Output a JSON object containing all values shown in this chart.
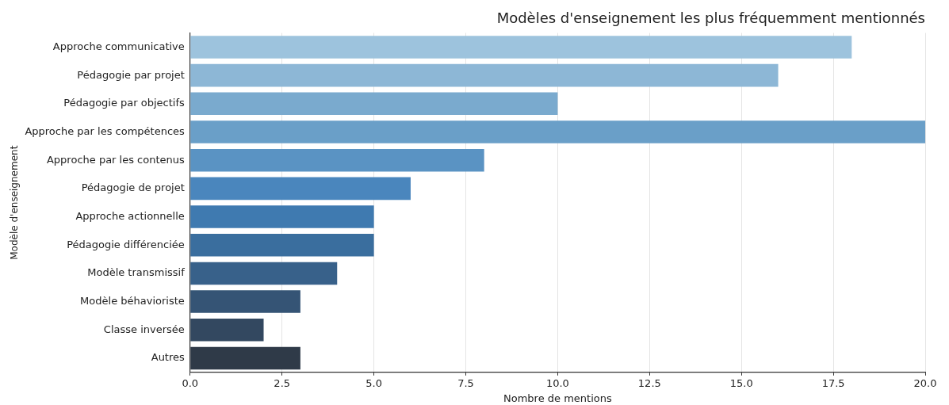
{
  "chart_data": {
    "type": "bar",
    "orientation": "horizontal",
    "title": "Modèles d'enseignement les plus fréquemment mentionnés",
    "xlabel": "Nombre de mentions",
    "ylabel": "Modèle d'enseignement",
    "categories": [
      "Approche communicative",
      "Pédagogie par projet",
      "Pédagogie par objectifs",
      "Approche par les compétences",
      "Approche par les contenus",
      "Pédagogie de projet",
      "Approche actionnelle",
      "Pédagogie différenciée",
      "Modèle transmissif",
      "Modèle béhavioriste",
      "Classe inversée",
      "Autres"
    ],
    "values": [
      18,
      16,
      10,
      20,
      8,
      6,
      5,
      5,
      4,
      3,
      2,
      3
    ],
    "colors": [
      "#9dc3dd",
      "#8db7d6",
      "#7aaace",
      "#6a9fc8",
      "#5a93c3",
      "#4a86bd",
      "#3f7ab0",
      "#3a6e9e",
      "#38618a",
      "#355475",
      "#334860",
      "#2f3a48"
    ],
    "xlim": [
      0,
      20
    ],
    "xticks": [
      {
        "value": 0,
        "label": "0.0"
      },
      {
        "value": 2.5,
        "label": "2.5"
      },
      {
        "value": 5,
        "label": "5.0"
      },
      {
        "value": 7.5,
        "label": "7.5"
      },
      {
        "value": 10,
        "label": "10.0"
      },
      {
        "value": 12.5,
        "label": "12.5"
      },
      {
        "value": 15,
        "label": "15.0"
      },
      {
        "value": 17.5,
        "label": "17.5"
      },
      {
        "value": 20,
        "label": "20.0"
      }
    ],
    "grid": "x",
    "legend": false
  }
}
